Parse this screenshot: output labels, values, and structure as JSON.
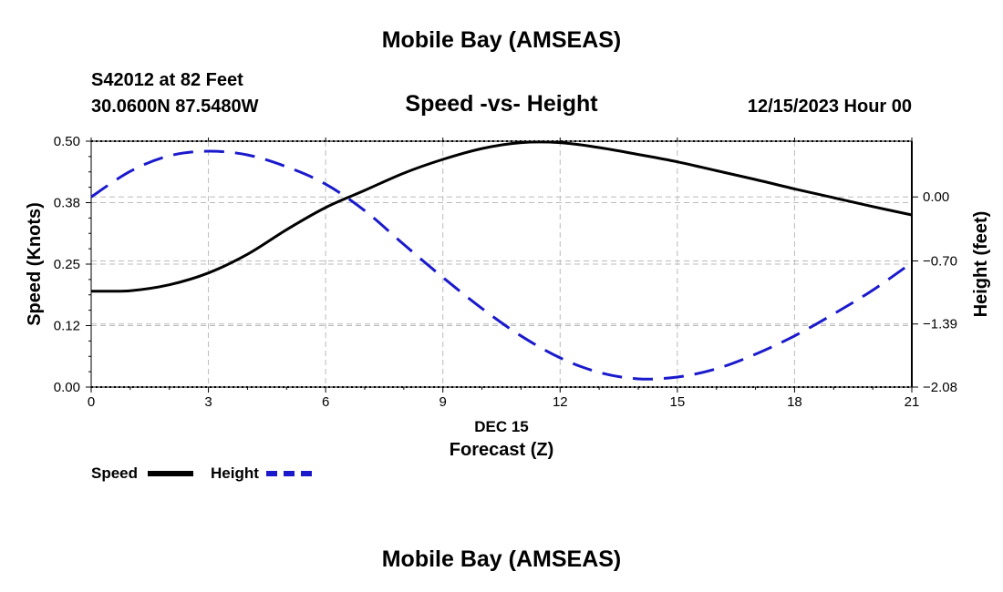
{
  "header": {
    "title": "Mobile Bay (AMSEAS)",
    "station": "S42012 at 82 Feet",
    "coords": "30.0600N  87.5480W",
    "subtitle": "Speed -vs- Height",
    "datetime": "12/15/2023 Hour 00"
  },
  "footer": {
    "title": "Mobile Bay (AMSEAS)"
  },
  "legend": {
    "speed_label": "Speed",
    "height_label": "Height"
  },
  "colors": {
    "speed": "#000000",
    "height": "#1a1acc",
    "grid": "#bbbbbb"
  },
  "chart_data": {
    "type": "line",
    "title": "Speed -vs- Height",
    "xlabel": "Forecast (Z)",
    "xsublabel": "DEC 15",
    "ylabel": "Speed (Knots)",
    "y2label": "Height (feet)",
    "xlim": [
      0,
      21
    ],
    "ylim": [
      0,
      0.5
    ],
    "y2lim": [
      -2.08,
      0.61
    ],
    "x_ticks": [
      0,
      3,
      6,
      9,
      12,
      15,
      18,
      21
    ],
    "x_tick_labels": [
      "0",
      "3",
      "6",
      "9",
      "12",
      "15",
      "18",
      "21"
    ],
    "y_ticks": [
      0,
      0.125,
      0.25,
      0.375,
      0.5
    ],
    "y_tick_labels": [
      "0.00",
      "0.12",
      "0.25",
      "0.38",
      "0.50"
    ],
    "y2_ticks": [
      -2.08,
      -1.39,
      -0.7,
      0.0
    ],
    "y2_tick_labels": [
      "−2.08",
      "−1.39",
      "−0.70",
      "0.00"
    ],
    "grid": true,
    "series": [
      {
        "name": "Speed",
        "axis": "left",
        "style": "solid",
        "x": [
          0,
          1,
          2,
          3,
          4,
          5,
          6,
          7,
          8,
          9,
          10,
          11,
          12,
          13,
          14,
          15,
          16,
          17,
          18,
          19,
          20,
          21
        ],
        "values": [
          0.195,
          0.196,
          0.208,
          0.232,
          0.27,
          0.32,
          0.365,
          0.4,
          0.435,
          0.463,
          0.485,
          0.497,
          0.497,
          0.487,
          0.473,
          0.458,
          0.44,
          0.422,
          0.403,
          0.385,
          0.367,
          0.35
        ]
      },
      {
        "name": "Height",
        "axis": "right",
        "style": "dashed",
        "x": [
          0,
          1,
          2,
          3,
          4,
          5,
          6,
          7,
          8,
          9,
          10,
          11,
          12,
          13,
          14,
          15,
          16,
          17,
          18,
          19,
          20,
          21
        ],
        "values": [
          0.0,
          0.28,
          0.45,
          0.5,
          0.46,
          0.33,
          0.14,
          -0.15,
          -0.52,
          -0.88,
          -1.22,
          -1.52,
          -1.76,
          -1.92,
          -1.99,
          -1.97,
          -1.88,
          -1.72,
          -1.52,
          -1.28,
          -1.02,
          -0.72
        ]
      }
    ]
  }
}
